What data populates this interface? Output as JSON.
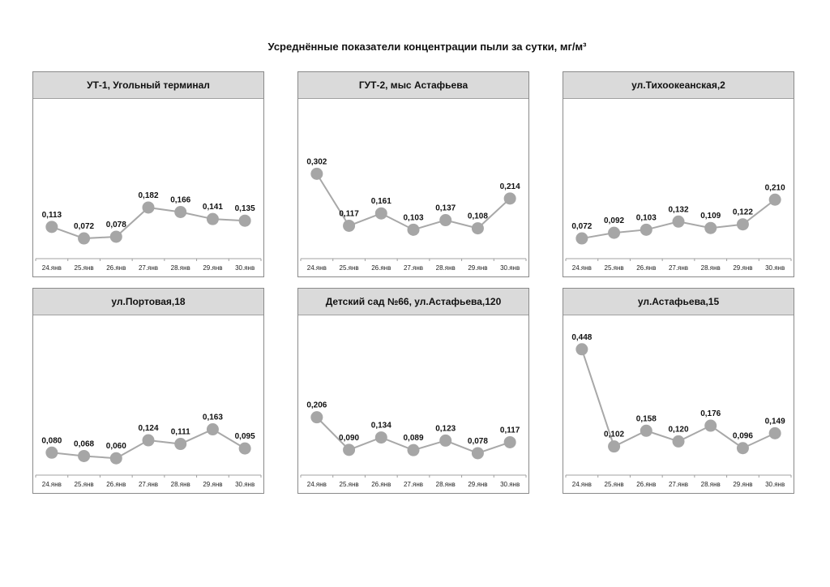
{
  "title": "Усреднённые показатели концентрации пыли за сутки, мг/м³",
  "style": {
    "line_color": "#a8a8a8",
    "marker_color": "#a6a6a6",
    "header_bg": "#dadada"
  },
  "chart_data": [
    {
      "type": "line",
      "title": "УТ-1, Угольный терминал",
      "categories": [
        "24.янв",
        "25.янв",
        "26.янв",
        "27.янв",
        "28.янв",
        "29.янв",
        "30.янв"
      ],
      "values": [
        0.113,
        0.072,
        0.078,
        0.182,
        0.166,
        0.141,
        0.135
      ],
      "labels": [
        "0,113",
        "0,072",
        "0,078",
        "0,182",
        "0,166",
        "0,141",
        "0,135"
      ],
      "ylim": [
        0,
        0.56
      ],
      "grid": false
    },
    {
      "type": "line",
      "title": "ГУТ-2, мыс Астафьева",
      "categories": [
        "24.янв",
        "25.янв",
        "26.янв",
        "27.янв",
        "28.янв",
        "29.янв",
        "30.янв"
      ],
      "values": [
        0.302,
        0.117,
        0.161,
        0.103,
        0.137,
        0.108,
        0.214
      ],
      "labels": [
        "0,302",
        "0,117",
        "0,161",
        "0,103",
        "0,137",
        "0,108",
        "0,214"
      ],
      "ylim": [
        0,
        0.56
      ],
      "grid": false
    },
    {
      "type": "line",
      "title": "ул.Тихоокеанская,2",
      "categories": [
        "24.янв",
        "25.янв",
        "26.янв",
        "27.янв",
        "28.янв",
        "29.янв",
        "30.янв"
      ],
      "values": [
        0.072,
        0.092,
        0.103,
        0.132,
        0.109,
        0.122,
        0.21
      ],
      "labels": [
        "0,072",
        "0,092",
        "0,103",
        "0,132",
        "0,109",
        "0,122",
        "0,210"
      ],
      "ylim": [
        0,
        0.56
      ],
      "grid": false
    },
    {
      "type": "line",
      "title": "ул.Портовая,18",
      "categories": [
        "24.янв",
        "25.янв",
        "26.янв",
        "27.янв",
        "28.янв",
        "29.янв",
        "30.янв"
      ],
      "values": [
        0.08,
        0.068,
        0.06,
        0.124,
        0.111,
        0.163,
        0.095
      ],
      "labels": [
        "0,080",
        "0,068",
        "0,060",
        "0,124",
        "0,111",
        "0,163",
        "0,095"
      ],
      "ylim": [
        0,
        0.56
      ],
      "grid": false
    },
    {
      "type": "line",
      "title": "Детский сад №66, ул.Астафьева,120",
      "categories": [
        "24.янв",
        "25.янв",
        "26.янв",
        "27.янв",
        "28.янв",
        "29.янв",
        "30.янв"
      ],
      "values": [
        0.206,
        0.09,
        0.134,
        0.089,
        0.123,
        0.078,
        0.117
      ],
      "labels": [
        "0,206",
        "0,090",
        "0,134",
        "0,089",
        "0,123",
        "0,078",
        "0,117"
      ],
      "ylim": [
        0,
        0.56
      ],
      "grid": false
    },
    {
      "type": "line",
      "title": "ул.Астафьева,15",
      "categories": [
        "24.янв",
        "25.янв",
        "26.янв",
        "27.янв",
        "28.янв",
        "29.янв",
        "30.янв"
      ],
      "values": [
        0.448,
        0.102,
        0.158,
        0.12,
        0.176,
        0.096,
        0.149
      ],
      "labels": [
        "0,448",
        "0,102",
        "0,158",
        "0,120",
        "0,176",
        "0,096",
        "0,149"
      ],
      "ylim": [
        0,
        0.56
      ],
      "grid": false
    }
  ]
}
